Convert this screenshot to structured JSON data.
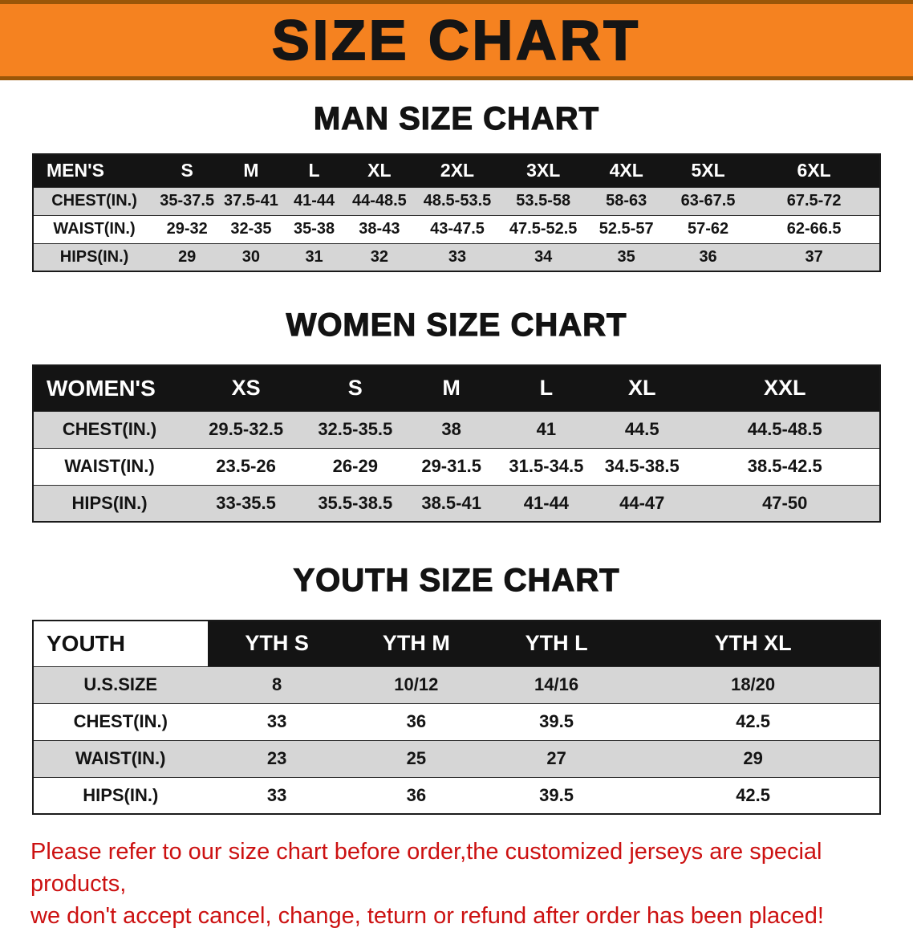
{
  "banner": {
    "title": "SIZE CHART"
  },
  "sections": [
    {
      "heading": "MAN SIZE CHART",
      "table": {
        "name": "men-size-table",
        "header": [
          "MEN'S",
          "S",
          "M",
          "L",
          "XL",
          "2XL",
          "3XL",
          "4XL",
          "5XL",
          "6XL"
        ],
        "col_widths": [
          "14.4%",
          "7.6%",
          "7.5%",
          "7.4%",
          "8.0%",
          "10.4%",
          "9.9%",
          "9.7%",
          "9.6%",
          "15.5%"
        ],
        "rows": [
          {
            "label": "CHEST(IN.)",
            "values": [
              "35-37.5",
              "37.5-41",
              "41-44",
              "44-48.5",
              "48.5-53.5",
              "53.5-58",
              "58-63",
              "63-67.5",
              "67.5-72"
            ]
          },
          {
            "label": "WAIST(IN.)",
            "values": [
              "29-32",
              "32-35",
              "35-38",
              "38-43",
              "43-47.5",
              "47.5-52.5",
              "52.5-57",
              "57-62",
              "62-66.5"
            ]
          },
          {
            "label": "HIPS(IN.)",
            "values": [
              "29",
              "30",
              "31",
              "32",
              "33",
              "34",
              "35",
              "36",
              "37"
            ]
          }
        ]
      }
    },
    {
      "heading": "WOMEN SIZE CHART",
      "table": {
        "name": "women-size-table",
        "header": [
          "WOMEN'S",
          "XS",
          "S",
          "M",
          "L",
          "XL",
          "XXL"
        ],
        "col_widths": [
          "18.0%",
          "14.3%",
          "11.5%",
          "11.2%",
          "11.2%",
          "11.4%",
          "22.4%"
        ],
        "rows": [
          {
            "label": "CHEST(IN.)",
            "values": [
              "29.5-32.5",
              "32.5-35.5",
              "38",
              "41",
              "44.5",
              "44.5-48.5"
            ]
          },
          {
            "label": "WAIST(IN.)",
            "values": [
              "23.5-26",
              "26-29",
              "29-31.5",
              "31.5-34.5",
              "34.5-38.5",
              "38.5-42.5"
            ]
          },
          {
            "label": "HIPS(IN.)",
            "values": [
              "33-35.5",
              "35.5-38.5",
              "38.5-41",
              "41-44",
              "44-47",
              "47-50"
            ]
          }
        ]
      }
    },
    {
      "heading": "YOUTH SIZE CHART",
      "table": {
        "name": "youth-size-table",
        "corner_white": true,
        "header": [
          "YOUTH",
          "YTH S",
          "YTH M",
          "YTH L",
          "YTH XL"
        ],
        "col_widths": [
          "20.6%",
          "16.4%",
          "16.5%",
          "16.6%",
          "29.9%"
        ],
        "rows": [
          {
            "label": "U.S.SIZE",
            "values": [
              "8",
              "10/12",
              "14/16",
              "18/20"
            ]
          },
          {
            "label": "CHEST(IN.)",
            "values": [
              "33",
              "36",
              "39.5",
              "42.5"
            ]
          },
          {
            "label": "WAIST(IN.)",
            "values": [
              "23",
              "25",
              "27",
              "29"
            ]
          },
          {
            "label": "HIPS(IN.)",
            "values": [
              "33",
              "36",
              "39.5",
              "42.5"
            ]
          }
        ]
      }
    }
  ],
  "disclaimer": {
    "line1": "Please refer to our size chart before order,the customized jerseys are special products,",
    "line2": "we don't accept cancel, change, teturn or refund after order has been placed!"
  },
  "colors": {
    "banner_orange": "#f58220",
    "banner_edge": "#9a5608",
    "header_black": "#141414",
    "stripe_gray": "#d6d6d6",
    "disclaimer_red": "#cc1111"
  }
}
